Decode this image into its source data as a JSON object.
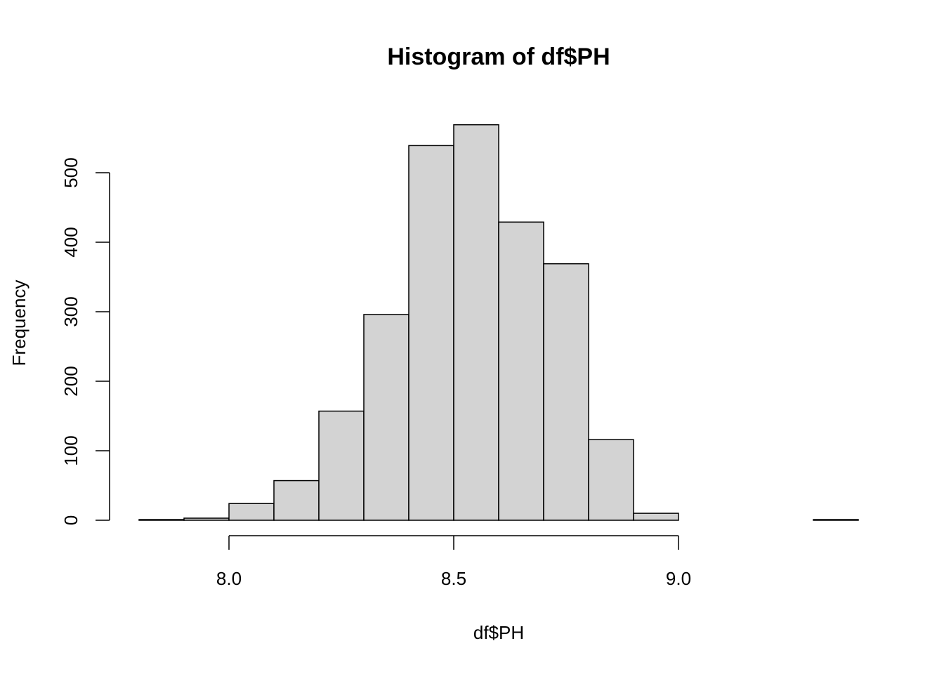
{
  "chart_data": {
    "type": "bar",
    "title": "Histogram of df$PH",
    "xlabel": "df$PH",
    "ylabel": "Frequency",
    "bin_width": 0.1,
    "bins": [
      {
        "start": 7.8,
        "end": 7.9,
        "count": 1
      },
      {
        "start": 7.9,
        "end": 8.0,
        "count": 3
      },
      {
        "start": 8.0,
        "end": 8.1,
        "count": 24
      },
      {
        "start": 8.1,
        "end": 8.2,
        "count": 57
      },
      {
        "start": 8.2,
        "end": 8.3,
        "count": 157
      },
      {
        "start": 8.3,
        "end": 8.4,
        "count": 296
      },
      {
        "start": 8.4,
        "end": 8.5,
        "count": 539
      },
      {
        "start": 8.5,
        "end": 8.6,
        "count": 569
      },
      {
        "start": 8.6,
        "end": 8.7,
        "count": 429
      },
      {
        "start": 8.7,
        "end": 8.8,
        "count": 369
      },
      {
        "start": 8.8,
        "end": 8.9,
        "count": 116
      },
      {
        "start": 8.9,
        "end": 9.0,
        "count": 10
      },
      {
        "start": 9.0,
        "end": 9.1,
        "count": 0
      },
      {
        "start": 9.1,
        "end": 9.2,
        "count": 0
      },
      {
        "start": 9.2,
        "end": 9.3,
        "count": 0
      },
      {
        "start": 9.3,
        "end": 9.4,
        "count": 1
      }
    ],
    "xticks": [
      "8.0",
      "8.5",
      "9.0"
    ],
    "xtick_values": [
      8.0,
      8.5,
      9.0
    ],
    "yticks": [
      "0",
      "100",
      "200",
      "300",
      "400",
      "500"
    ],
    "ytick_values": [
      0,
      100,
      200,
      300,
      400,
      500
    ],
    "xlim": [
      7.8,
      9.4
    ],
    "ylim": [
      0,
      569
    ],
    "grid": false,
    "legend": "none",
    "colors": {
      "bar_fill": "#d3d3d3",
      "bar_stroke": "#000000",
      "background": "#ffffff"
    }
  }
}
